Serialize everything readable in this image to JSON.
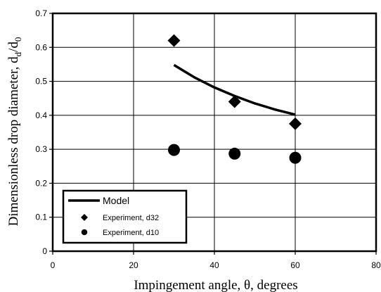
{
  "chart_data": {
    "type": "scatter",
    "title": "",
    "xlabel": "Impingement angle, θ, degrees",
    "ylabel_prefix": "Dimensionless drop diameter, d",
    "ylabel_sub1": "d",
    "ylabel_mid": "/d",
    "ylabel_sub2": "0",
    "xlim": [
      0,
      80
    ],
    "ylim": [
      0,
      0.7
    ],
    "xticks": [
      0,
      20,
      40,
      60,
      80
    ],
    "xtick_labels": [
      "0",
      "20",
      "40",
      "60",
      "80"
    ],
    "yticks": [
      0,
      0.1,
      0.2,
      0.3,
      0.4,
      0.5,
      0.6,
      0.7
    ],
    "ytick_labels": [
      "0",
      "0.1",
      "0.2",
      "0.3",
      "0.4",
      "0.5",
      "0.6",
      "0.7"
    ],
    "grid": true,
    "legend_position": "bottom-left",
    "series": [
      {
        "name": "Model",
        "kind": "line",
        "color": "#000000",
        "x": [
          30,
          35,
          40,
          45,
          50,
          55,
          60
        ],
        "y": [
          0.548,
          0.512,
          0.482,
          0.457,
          0.435,
          0.417,
          0.402
        ]
      },
      {
        "name": "Experiment, d32",
        "kind": "scatter",
        "marker": "diamond",
        "color": "#000000",
        "x": [
          30,
          45,
          60
        ],
        "y": [
          0.62,
          0.44,
          0.375
        ]
      },
      {
        "name": "Experiment, d10",
        "kind": "scatter",
        "marker": "circle",
        "color": "#000000",
        "x": [
          30,
          45,
          60
        ],
        "y": [
          0.298,
          0.287,
          0.275
        ]
      }
    ]
  }
}
